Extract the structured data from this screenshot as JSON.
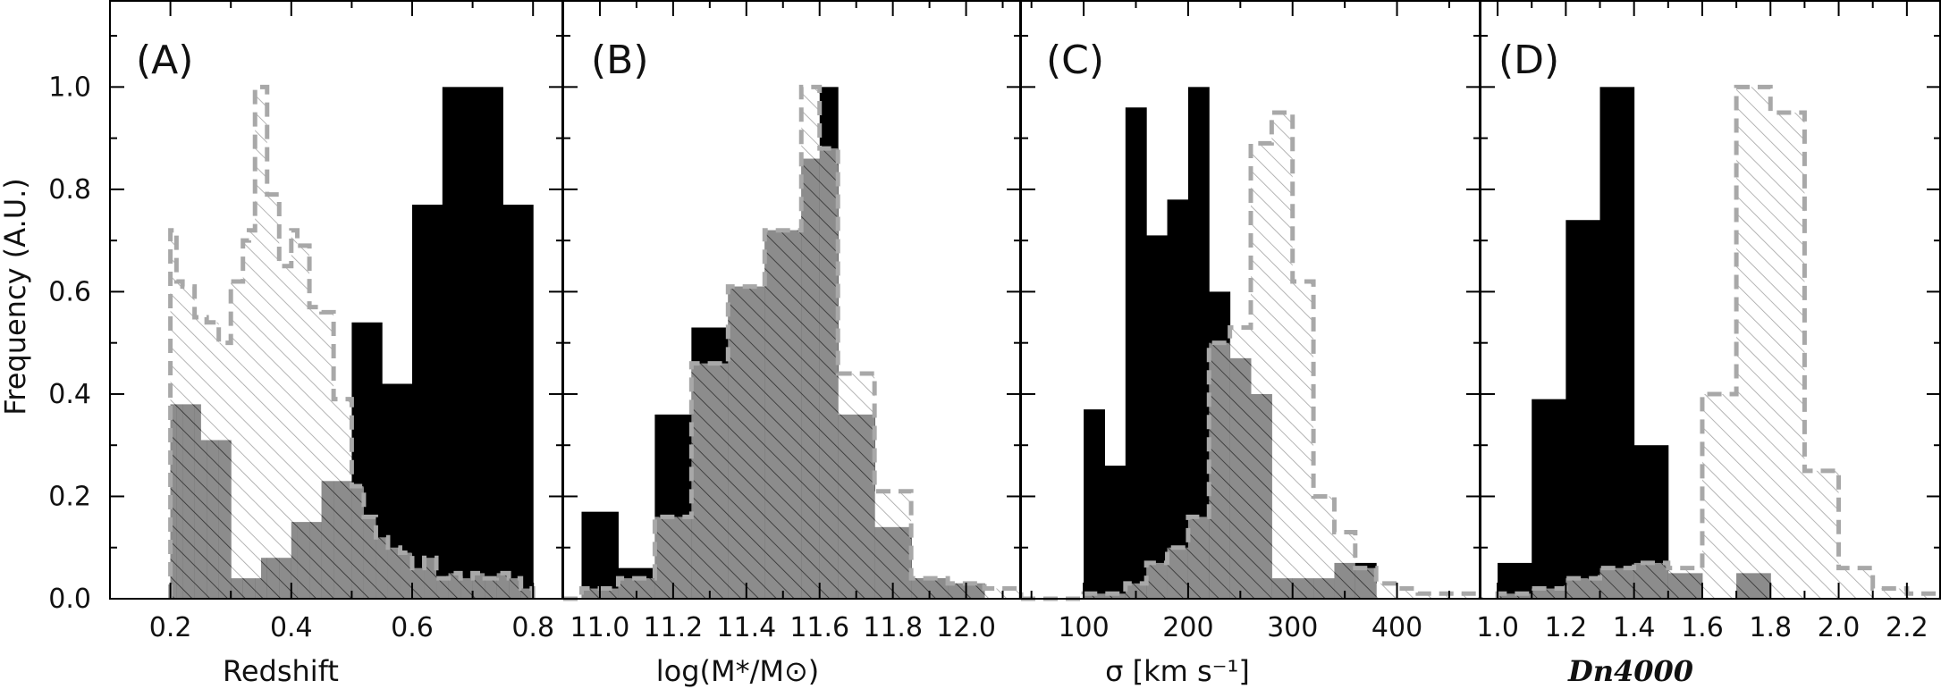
{
  "ylabel": "Frequency (A.U.)",
  "ylim": [
    0,
    1.17
  ],
  "yticks": [
    0.0,
    0.2,
    0.4,
    0.6,
    0.8,
    1.0
  ],
  "ytick_labels": [
    "0.0",
    "0.2",
    "0.4",
    "0.6",
    "0.8",
    "1.0"
  ],
  "colors": {
    "filled": "#000000",
    "hatched_outline": "#a8a8a8",
    "hatch_fill": "#ffffff"
  },
  "legend": "none",
  "chart_data": [
    {
      "type": "bar",
      "panel": "(A)",
      "xlabel": "Redshift",
      "xlim": [
        0.1,
        0.85
      ],
      "xticks": [
        0.2,
        0.4,
        0.6,
        0.8
      ],
      "xtick_labels": [
        "0.2",
        "0.4",
        "0.6",
        "0.8"
      ],
      "series": [
        {
          "style": "filled",
          "bins": [
            [
              0.2,
              0.25,
              0.38
            ],
            [
              0.25,
              0.3,
              0.31
            ],
            [
              0.3,
              0.35,
              0.04
            ],
            [
              0.35,
              0.4,
              0.08
            ],
            [
              0.4,
              0.45,
              0.15
            ],
            [
              0.45,
              0.5,
              0.23
            ],
            [
              0.5,
              0.55,
              0.54
            ],
            [
              0.55,
              0.6,
              0.42
            ],
            [
              0.6,
              0.65,
              0.77
            ],
            [
              0.65,
              0.75,
              1.0
            ],
            [
              0.75,
              0.8,
              0.77
            ]
          ]
        },
        {
          "style": "hatched",
          "bins": [
            [
              0.2,
              0.21,
              0.72
            ],
            [
              0.21,
              0.22,
              0.62
            ],
            [
              0.22,
              0.24,
              0.61
            ],
            [
              0.24,
              0.26,
              0.55
            ],
            [
              0.26,
              0.28,
              0.54
            ],
            [
              0.28,
              0.3,
              0.5
            ],
            [
              0.3,
              0.32,
              0.62
            ],
            [
              0.32,
              0.33,
              0.7
            ],
            [
              0.33,
              0.34,
              0.72
            ],
            [
              0.34,
              0.36,
              1.0
            ],
            [
              0.36,
              0.38,
              0.79
            ],
            [
              0.38,
              0.4,
              0.65
            ],
            [
              0.4,
              0.41,
              0.72
            ],
            [
              0.41,
              0.43,
              0.69
            ],
            [
              0.43,
              0.45,
              0.57
            ],
            [
              0.45,
              0.47,
              0.56
            ],
            [
              0.47,
              0.5,
              0.39
            ],
            [
              0.5,
              0.52,
              0.22
            ],
            [
              0.52,
              0.54,
              0.16
            ],
            [
              0.54,
              0.56,
              0.12
            ],
            [
              0.56,
              0.58,
              0.1
            ],
            [
              0.58,
              0.6,
              0.09
            ],
            [
              0.6,
              0.62,
              0.06
            ],
            [
              0.62,
              0.64,
              0.08
            ],
            [
              0.64,
              0.66,
              0.04
            ],
            [
              0.66,
              0.68,
              0.05
            ],
            [
              0.68,
              0.7,
              0.04
            ],
            [
              0.7,
              0.72,
              0.05
            ],
            [
              0.72,
              0.74,
              0.04
            ],
            [
              0.74,
              0.76,
              0.05
            ],
            [
              0.76,
              0.78,
              0.04
            ],
            [
              0.78,
              0.8,
              0.02
            ]
          ]
        }
      ]
    },
    {
      "type": "bar",
      "panel": "(B)",
      "xlabel": "log(M*/M⊙)",
      "xlim": [
        10.9,
        12.15
      ],
      "xticks": [
        11.0,
        11.2,
        11.4,
        11.6,
        11.8,
        12.0
      ],
      "xtick_labels": [
        "11.0",
        "11.2",
        "11.4",
        "11.6",
        "11.8",
        "12.0"
      ],
      "series": [
        {
          "style": "filled",
          "bins": [
            [
              10.9,
              10.95,
              0.0
            ],
            [
              10.95,
              11.05,
              0.17
            ],
            [
              11.05,
              11.15,
              0.06
            ],
            [
              11.15,
              11.25,
              0.36
            ],
            [
              11.25,
              11.35,
              0.53
            ],
            [
              11.35,
              11.45,
              0.61
            ],
            [
              11.45,
              11.55,
              0.72
            ],
            [
              11.55,
              11.6,
              0.86
            ],
            [
              11.6,
              11.65,
              1.0
            ],
            [
              11.65,
              11.75,
              0.36
            ],
            [
              11.75,
              11.85,
              0.14
            ],
            [
              11.85,
              11.95,
              0.04
            ],
            [
              11.95,
              12.05,
              0.03
            ],
            [
              12.05,
              12.15,
              0.0
            ]
          ]
        },
        {
          "style": "hatched",
          "bins": [
            [
              10.9,
              10.95,
              0.0
            ],
            [
              10.95,
              11.05,
              0.02
            ],
            [
              11.05,
              11.15,
              0.04
            ],
            [
              11.15,
              11.25,
              0.16
            ],
            [
              11.25,
              11.35,
              0.46
            ],
            [
              11.35,
              11.45,
              0.61
            ],
            [
              11.45,
              11.55,
              0.72
            ],
            [
              11.55,
              11.6,
              1.0
            ],
            [
              11.6,
              11.65,
              0.88
            ],
            [
              11.65,
              11.75,
              0.44
            ],
            [
              11.75,
              11.85,
              0.21
            ],
            [
              11.85,
              11.95,
              0.04
            ],
            [
              11.95,
              12.05,
              0.03
            ],
            [
              12.05,
              12.15,
              0.02
            ]
          ]
        }
      ]
    },
    {
      "type": "bar",
      "panel": "(C)",
      "xlabel": "σ [km s⁻¹]",
      "xlim": [
        40,
        480
      ],
      "xticks": [
        100,
        200,
        300,
        400
      ],
      "xtick_labels": [
        "100",
        "200",
        "300",
        "400"
      ],
      "series": [
        {
          "style": "filled",
          "bins": [
            [
              100,
              120,
              0.37
            ],
            [
              120,
              140,
              0.26
            ],
            [
              140,
              160,
              0.96
            ],
            [
              160,
              180,
              0.71
            ],
            [
              180,
              200,
              0.78
            ],
            [
              200,
              220,
              1.0
            ],
            [
              220,
              240,
              0.6
            ],
            [
              240,
              260,
              0.47
            ],
            [
              260,
              280,
              0.4
            ],
            [
              280,
              340,
              0.04
            ],
            [
              340,
              380,
              0.07
            ]
          ]
        },
        {
          "style": "hatched",
          "bins": [
            [
              40,
              60,
              0.0
            ],
            [
              60,
              80,
              0.0
            ],
            [
              80,
              100,
              0.0
            ],
            [
              100,
              120,
              0.01
            ],
            [
              120,
              140,
              0.01
            ],
            [
              140,
              160,
              0.03
            ],
            [
              160,
              180,
              0.07
            ],
            [
              180,
              200,
              0.1
            ],
            [
              200,
              220,
              0.16
            ],
            [
              220,
              240,
              0.5
            ],
            [
              240,
              260,
              0.53
            ],
            [
              260,
              280,
              0.89
            ],
            [
              280,
              300,
              0.95
            ],
            [
              300,
              320,
              0.62
            ],
            [
              320,
              340,
              0.2
            ],
            [
              340,
              360,
              0.13
            ],
            [
              360,
              380,
              0.06
            ],
            [
              380,
              400,
              0.03
            ],
            [
              400,
              420,
              0.02
            ],
            [
              420,
              440,
              0.01
            ],
            [
              440,
              460,
              0.01
            ],
            [
              460,
              480,
              0.01
            ]
          ]
        }
      ]
    },
    {
      "type": "bar",
      "panel": "(D)",
      "xlabel": "Dn4000",
      "xlim": [
        0.95,
        2.3
      ],
      "xticks": [
        1.0,
        1.2,
        1.4,
        1.6,
        1.8,
        2.0,
        2.2
      ],
      "xtick_labels": [
        "1.0",
        "1.2",
        "1.4",
        "1.6",
        "1.8",
        "2.0",
        "2.2"
      ],
      "series": [
        {
          "style": "filled",
          "bins": [
            [
              1.0,
              1.1,
              0.07
            ],
            [
              1.1,
              1.2,
              0.39
            ],
            [
              1.2,
              1.3,
              0.74
            ],
            [
              1.3,
              1.4,
              1.0
            ],
            [
              1.4,
              1.5,
              0.3
            ],
            [
              1.5,
              1.6,
              0.05
            ],
            [
              1.6,
              1.7,
              0.0
            ],
            [
              1.7,
              1.8,
              0.05
            ]
          ]
        },
        {
          "style": "hatched",
          "bins": [
            [
              1.0,
              1.1,
              0.01
            ],
            [
              1.1,
              1.2,
              0.02
            ],
            [
              1.2,
              1.3,
              0.04
            ],
            [
              1.3,
              1.4,
              0.06
            ],
            [
              1.4,
              1.5,
              0.07
            ],
            [
              1.5,
              1.6,
              0.06
            ],
            [
              1.6,
              1.7,
              0.4
            ],
            [
              1.7,
              1.8,
              1.0
            ],
            [
              1.8,
              1.9,
              0.95
            ],
            [
              1.9,
              2.0,
              0.25
            ],
            [
              2.0,
              2.1,
              0.06
            ],
            [
              2.1,
              2.2,
              0.02
            ],
            [
              2.2,
              2.3,
              0.01
            ]
          ]
        }
      ]
    }
  ]
}
